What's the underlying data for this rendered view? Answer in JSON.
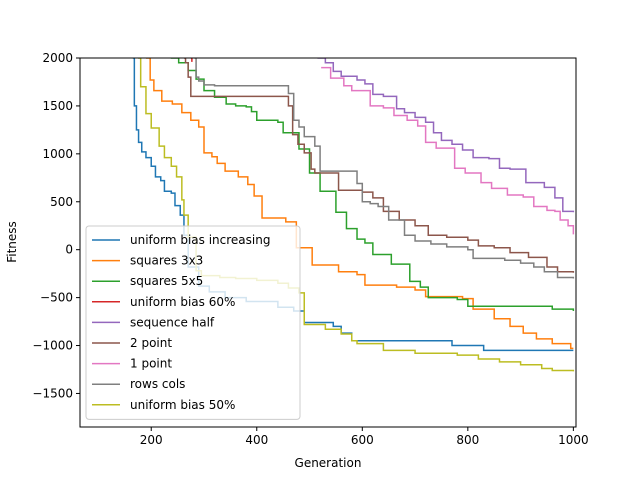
{
  "chart_data": {
    "type": "line",
    "title": "",
    "xlabel": "Generation",
    "ylabel": "Fitness",
    "xlim": [
      65,
      1005
    ],
    "ylim": [
      -1850,
      2000
    ],
    "xticks": [
      200,
      400,
      600,
      800,
      1000
    ],
    "yticks": [
      -1500,
      -1000,
      -500,
      0,
      500,
      1000,
      1500,
      2000
    ],
    "grid": false,
    "legend_position": "lower-left",
    "series": [
      {
        "name": "uniform bias increasing",
        "color": "#1f77b4",
        "points": [
          [
            165,
            2000
          ],
          [
            168,
            1500
          ],
          [
            172,
            1250
          ],
          [
            176,
            1120
          ],
          [
            182,
            1020
          ],
          [
            190,
            960
          ],
          [
            200,
            870
          ],
          [
            208,
            760
          ],
          [
            218,
            720
          ],
          [
            225,
            610
          ],
          [
            238,
            590
          ],
          [
            245,
            460
          ],
          [
            255,
            360
          ],
          [
            262,
            150
          ],
          [
            270,
            -180
          ],
          [
            290,
            -380
          ],
          [
            310,
            -440
          ],
          [
            340,
            -500
          ],
          [
            380,
            -540
          ],
          [
            440,
            -600
          ],
          [
            470,
            -640
          ],
          [
            490,
            -760
          ],
          [
            545,
            -800
          ],
          [
            560,
            -870
          ],
          [
            580,
            -950
          ],
          [
            700,
            -950
          ],
          [
            770,
            -1000
          ],
          [
            830,
            -1050
          ],
          [
            1000,
            -1050
          ]
        ]
      },
      {
        "name": "squares 3x3",
        "color": "#ff7f0e",
        "points": [
          [
            190,
            2000
          ],
          [
            198,
            1770
          ],
          [
            205,
            1660
          ],
          [
            220,
            1550
          ],
          [
            240,
            1520
          ],
          [
            258,
            1430
          ],
          [
            275,
            1350
          ],
          [
            290,
            1280
          ],
          [
            300,
            1010
          ],
          [
            315,
            970
          ],
          [
            325,
            900
          ],
          [
            340,
            820
          ],
          [
            365,
            760
          ],
          [
            383,
            680
          ],
          [
            395,
            560
          ],
          [
            410,
            330
          ],
          [
            455,
            290
          ],
          [
            475,
            20
          ],
          [
            505,
            -160
          ],
          [
            555,
            -230
          ],
          [
            590,
            -260
          ],
          [
            605,
            -370
          ],
          [
            665,
            -390
          ],
          [
            700,
            -420
          ],
          [
            720,
            -490
          ],
          [
            790,
            -510
          ],
          [
            810,
            -620
          ],
          [
            850,
            -720
          ],
          [
            880,
            -800
          ],
          [
            905,
            -870
          ],
          [
            930,
            -930
          ],
          [
            960,
            -980
          ],
          [
            995,
            -1030
          ],
          [
            1000,
            -1030
          ]
        ]
      },
      {
        "name": "squares 5x5",
        "color": "#2ca02c",
        "points": [
          [
            237,
            2000
          ],
          [
            252,
            1950
          ],
          [
            270,
            1870
          ],
          [
            285,
            1780
          ],
          [
            300,
            1660
          ],
          [
            320,
            1590
          ],
          [
            342,
            1520
          ],
          [
            360,
            1500
          ],
          [
            380,
            1490
          ],
          [
            390,
            1440
          ],
          [
            400,
            1350
          ],
          [
            440,
            1330
          ],
          [
            450,
            1220
          ],
          [
            480,
            1050
          ],
          [
            500,
            800
          ],
          [
            520,
            610
          ],
          [
            550,
            390
          ],
          [
            570,
            220
          ],
          [
            590,
            110
          ],
          [
            605,
            70
          ],
          [
            620,
            -50
          ],
          [
            655,
            -150
          ],
          [
            690,
            -330
          ],
          [
            710,
            -390
          ],
          [
            725,
            -500
          ],
          [
            780,
            -520
          ],
          [
            800,
            -590
          ],
          [
            960,
            -620
          ],
          [
            1000,
            -640
          ]
        ]
      },
      {
        "name": "uniform bias 60%",
        "color": "#d62728",
        "points": [
          [
            275,
            2000
          ],
          [
            277,
            1960
          ]
        ]
      },
      {
        "name": "sequence half",
        "color": "#9467bd",
        "points": [
          [
            515,
            2000
          ],
          [
            530,
            1950
          ],
          [
            545,
            1860
          ],
          [
            560,
            1810
          ],
          [
            590,
            1770
          ],
          [
            605,
            1730
          ],
          [
            620,
            1620
          ],
          [
            640,
            1600
          ],
          [
            665,
            1470
          ],
          [
            680,
            1430
          ],
          [
            700,
            1380
          ],
          [
            720,
            1330
          ],
          [
            735,
            1220
          ],
          [
            750,
            1140
          ],
          [
            770,
            1100
          ],
          [
            790,
            1040
          ],
          [
            810,
            960
          ],
          [
            840,
            950
          ],
          [
            860,
            850
          ],
          [
            880,
            840
          ],
          [
            910,
            700
          ],
          [
            945,
            650
          ],
          [
            965,
            540
          ],
          [
            980,
            400
          ],
          [
            1000,
            390
          ]
        ]
      },
      {
        "name": "2 point",
        "color": "#8c564b",
        "points": [
          [
            262,
            2000
          ],
          [
            265,
            1950
          ],
          [
            270,
            1800
          ],
          [
            275,
            1600
          ],
          [
            460,
            1500
          ],
          [
            468,
            1200
          ],
          [
            478,
            1100
          ],
          [
            490,
            1010
          ],
          [
            503,
            840
          ],
          [
            510,
            800
          ],
          [
            555,
            620
          ],
          [
            580,
            620
          ],
          [
            600,
            600
          ],
          [
            620,
            540
          ],
          [
            640,
            400
          ],
          [
            670,
            310
          ],
          [
            700,
            250
          ],
          [
            725,
            150
          ],
          [
            760,
            130
          ],
          [
            800,
            100
          ],
          [
            820,
            40
          ],
          [
            850,
            20
          ],
          [
            880,
            -30
          ],
          [
            915,
            -80
          ],
          [
            950,
            -180
          ],
          [
            970,
            -230
          ],
          [
            1000,
            -240
          ]
        ]
      },
      {
        "name": "1 point",
        "color": "#e377c2",
        "points": [
          [
            522,
            1900
          ],
          [
            540,
            1790
          ],
          [
            565,
            1710
          ],
          [
            580,
            1660
          ],
          [
            615,
            1500
          ],
          [
            640,
            1480
          ],
          [
            660,
            1400
          ],
          [
            685,
            1350
          ],
          [
            705,
            1290
          ],
          [
            720,
            1120
          ],
          [
            740,
            1060
          ],
          [
            775,
            850
          ],
          [
            795,
            800
          ],
          [
            825,
            700
          ],
          [
            845,
            640
          ],
          [
            875,
            570
          ],
          [
            905,
            550
          ],
          [
            925,
            450
          ],
          [
            950,
            410
          ],
          [
            965,
            400
          ],
          [
            975,
            310
          ],
          [
            990,
            250
          ],
          [
            1000,
            160
          ]
        ]
      },
      {
        "name": "rows cols",
        "color": "#7f7f7f",
        "points": [
          [
            282,
            2000
          ],
          [
            285,
            1800
          ],
          [
            290,
            1760
          ],
          [
            300,
            1720
          ],
          [
            320,
            1710
          ],
          [
            400,
            1710
          ],
          [
            460,
            1630
          ],
          [
            470,
            1350
          ],
          [
            480,
            1280
          ],
          [
            490,
            1180
          ],
          [
            510,
            1080
          ],
          [
            520,
            820
          ],
          [
            590,
            690
          ],
          [
            600,
            500
          ],
          [
            615,
            480
          ],
          [
            630,
            450
          ],
          [
            650,
            310
          ],
          [
            680,
            150
          ],
          [
            700,
            90
          ],
          [
            730,
            60
          ],
          [
            760,
            30
          ],
          [
            800,
            0
          ],
          [
            810,
            -90
          ],
          [
            870,
            -110
          ],
          [
            900,
            -140
          ],
          [
            925,
            -180
          ],
          [
            945,
            -230
          ],
          [
            970,
            -290
          ],
          [
            1000,
            -300
          ]
        ]
      },
      {
        "name": "uniform bias 50%",
        "color": "#bcbd22",
        "points": [
          [
            175,
            2000
          ],
          [
            180,
            1700
          ],
          [
            190,
            1420
          ],
          [
            200,
            1270
          ],
          [
            215,
            1080
          ],
          [
            225,
            960
          ],
          [
            238,
            870
          ],
          [
            248,
            760
          ],
          [
            258,
            520
          ],
          [
            262,
            360
          ],
          [
            270,
            130
          ],
          [
            285,
            -220
          ],
          [
            295,
            -270
          ],
          [
            330,
            -290
          ],
          [
            360,
            -300
          ],
          [
            400,
            -320
          ],
          [
            440,
            -350
          ],
          [
            460,
            -400
          ],
          [
            480,
            -450
          ],
          [
            490,
            -780
          ],
          [
            530,
            -830
          ],
          [
            560,
            -880
          ],
          [
            580,
            -950
          ],
          [
            590,
            -980
          ],
          [
            640,
            -1050
          ],
          [
            700,
            -1080
          ],
          [
            780,
            -1100
          ],
          [
            820,
            -1140
          ],
          [
            860,
            -1170
          ],
          [
            900,
            -1200
          ],
          [
            940,
            -1240
          ],
          [
            960,
            -1260
          ],
          [
            1000,
            -1270
          ]
        ]
      }
    ]
  }
}
